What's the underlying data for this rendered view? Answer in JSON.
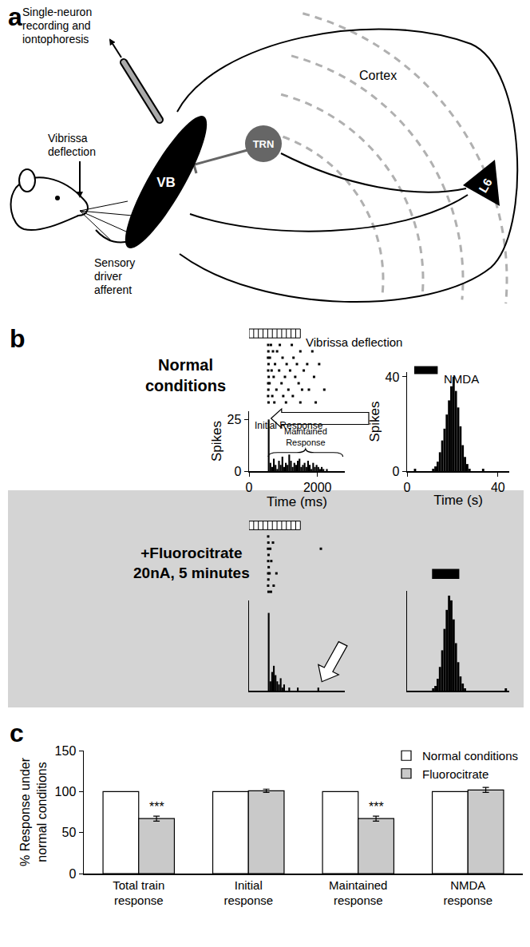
{
  "panels": [
    "a",
    "b",
    "c"
  ],
  "diagram": {
    "electrode_label": [
      "Single-neuron",
      "recording and",
      "iontophoresis"
    ],
    "stimulus_label": [
      "Vibrissa",
      "deflection"
    ],
    "afferent_label": [
      "Sensory",
      "driver",
      "afferent"
    ],
    "nodes": [
      "VB",
      "TRN",
      "Cortex",
      "L6"
    ]
  },
  "conditions": [
    "Normal conditions",
    "+Fluorocitrate 20nA, 5 minutes"
  ],
  "chart_data": [
    {
      "type": "raster",
      "stimulus": [
        0,
        1500
      ],
      "stimulus_label": "Vibrissa deflection",
      "xlim": [
        0,
        2800
      ],
      "tick_labels": false,
      "trials": [
        [
          560,
          640,
          900,
          1250
        ],
        [
          565,
          700,
          820,
          1500,
          1850
        ],
        [
          555,
          610,
          980,
          1300
        ],
        [
          570,
          760,
          1100,
          1400,
          1700,
          2050
        ],
        [
          560,
          660,
          880,
          1200,
          1600
        ],
        [
          575,
          720,
          1050,
          1350,
          1900
        ],
        [
          560,
          600,
          950,
          1450
        ],
        [
          565,
          800,
          1150,
          1550,
          1750,
          2200
        ],
        [
          558,
          680,
          1000,
          1280
        ],
        [
          570,
          740,
          1080,
          1500,
          1950
        ]
      ]
    },
    {
      "type": "histogram",
      "x_label": "Time (ms)",
      "y_label": "Spikes",
      "color": "#000000",
      "bins": [
        0,
        50,
        100,
        150,
        200,
        250,
        300,
        350,
        400,
        450,
        500,
        550,
        600,
        650,
        700,
        750,
        800,
        850,
        900,
        950,
        1000,
        1050,
        1100,
        1150,
        1200,
        1250,
        1300,
        1350,
        1400,
        1450,
        1500,
        1550,
        1600,
        1650,
        1700,
        1750,
        1800,
        1850,
        1900,
        1950,
        2000,
        2050,
        2100,
        2150,
        2200,
        2250,
        2300,
        2350,
        2400,
        2450,
        2500,
        2550,
        2600,
        2650,
        2700,
        2750,
        2800
      ],
      "counts": [
        0,
        0,
        0,
        0,
        0,
        0,
        0,
        0,
        0,
        0,
        0,
        25,
        4,
        2,
        6,
        3,
        1,
        5,
        3,
        7,
        2,
        4,
        3,
        8,
        5,
        2,
        4,
        3,
        5,
        6,
        2,
        3,
        4,
        2,
        5,
        3,
        1,
        4,
        2,
        3,
        2,
        1,
        2,
        1,
        0,
        1,
        0,
        0,
        0,
        0,
        0,
        0,
        0,
        0,
        0,
        0
      ],
      "xlim": [
        0,
        2800
      ],
      "xticks": [
        0,
        2000
      ],
      "ylim": [
        0,
        29
      ],
      "yticks": [
        0,
        25
      ],
      "annotations": [
        "Initial Response",
        "Maintained Response"
      ]
    },
    {
      "type": "histogram",
      "x_label": "Time (s)",
      "y_label": "Spikes",
      "color": "#000000",
      "stimulus_label": "NMDA",
      "bins": [
        0,
        1,
        2,
        3,
        4,
        5,
        6,
        7,
        8,
        9,
        10,
        11,
        12,
        13,
        14,
        15,
        16,
        17,
        18,
        19,
        20,
        21,
        22,
        23,
        24,
        25,
        26,
        27,
        28,
        29,
        30,
        31,
        32,
        33,
        34,
        35,
        36,
        37,
        38,
        39,
        40,
        41,
        42,
        43,
        44,
        45
      ],
      "counts": [
        0,
        0,
        0,
        1,
        0,
        0,
        0,
        0,
        0,
        0,
        0,
        1,
        2,
        4,
        8,
        13,
        18,
        24,
        30,
        36,
        40,
        34,
        27,
        19,
        11,
        6,
        3,
        1,
        0,
        0,
        0,
        0,
        0,
        1,
        0,
        0,
        0,
        0,
        0,
        0,
        0,
        0,
        0,
        0,
        0
      ],
      "xlim": [
        0,
        45
      ],
      "xticks": [
        0,
        40
      ],
      "ylim": [
        0,
        42
      ],
      "yticks": [
        0,
        40
      ]
    },
    {
      "type": "raster",
      "stimulus": [
        0,
        1500
      ],
      "xlim": [
        0,
        2800
      ],
      "tick_labels": false,
      "trials": [
        [
          560
        ],
        [
          565,
          700
        ],
        [
          555,
          620,
          2100
        ],
        [
          570
        ],
        [
          560,
          650
        ],
        [
          575
        ],
        [
          560,
          600,
          800
        ],
        [
          565
        ],
        [
          558,
          720
        ],
        [
          570,
          640
        ]
      ]
    },
    {
      "type": "histogram",
      "color": "#000000",
      "tick_labels": false,
      "bins": [
        0,
        50,
        100,
        150,
        200,
        250,
        300,
        350,
        400,
        450,
        500,
        550,
        600,
        650,
        700,
        750,
        800,
        850,
        900,
        950,
        1000,
        1050,
        1100,
        1150,
        1200,
        1250,
        1300,
        1350,
        1400,
        1450,
        1500,
        1550,
        1600,
        1650,
        1700,
        1750,
        1800,
        1850,
        1900,
        1950,
        2000,
        2050,
        2100,
        2150,
        2200,
        2250,
        2300,
        2350,
        2400,
        2450,
        2500,
        2550,
        2600,
        2650,
        2700,
        2750,
        2800
      ],
      "counts": [
        0,
        0,
        0,
        0,
        0,
        0,
        0,
        0,
        0,
        0,
        0,
        25,
        3,
        6,
        8,
        5,
        3,
        2,
        4,
        1,
        2,
        0,
        0,
        1,
        0,
        0,
        0,
        0,
        1,
        0,
        0,
        0,
        0,
        0,
        0,
        0,
        0,
        0,
        0,
        0,
        1,
        0,
        0,
        0,
        0,
        0,
        0,
        0,
        0,
        0,
        0,
        0,
        0,
        0,
        0,
        0
      ],
      "xlim": [
        0,
        2800
      ],
      "ylim": [
        0,
        29
      ]
    },
    {
      "type": "histogram",
      "color": "#000000",
      "tick_labels": false,
      "stimulus": [
        11,
        23
      ],
      "bins": [
        0,
        1,
        2,
        3,
        4,
        5,
        6,
        7,
        8,
        9,
        10,
        11,
        12,
        13,
        14,
        15,
        16,
        17,
        18,
        19,
        20,
        21,
        22,
        23,
        24,
        25,
        26,
        27,
        28,
        29,
        30,
        31,
        32,
        33,
        34,
        35,
        36,
        37,
        38,
        39,
        40,
        41,
        42,
        43,
        44,
        45
      ],
      "counts": [
        0,
        0,
        0,
        0,
        0,
        0,
        0,
        0,
        0,
        0,
        0,
        1,
        2,
        5,
        10,
        17,
        26,
        34,
        40,
        38,
        30,
        20,
        12,
        6,
        3,
        1,
        0,
        0,
        0,
        0,
        0,
        0,
        0,
        0,
        0,
        0,
        0,
        0,
        0,
        0,
        0,
        0,
        0,
        1,
        0
      ],
      "xlim": [
        0,
        45
      ],
      "ylim": [
        0,
        42
      ]
    },
    {
      "type": "bar",
      "y_label": "% Response under normal conditions",
      "categories": [
        "Total train response",
        "Initial response",
        "Maintained response",
        "NMDA response"
      ],
      "series": [
        {
          "name": "Normal conditions",
          "color": "#ffffff",
          "values": [
            100,
            100,
            100,
            100
          ]
        },
        {
          "name": "Fluorocitrate",
          "color": "#c9c9c9",
          "values": [
            67,
            101,
            67,
            102
          ],
          "error": [
            3,
            2,
            3,
            3
          ],
          "annotations": [
            "***",
            null,
            "***",
            null
          ]
        }
      ],
      "ylim": [
        0,
        150
      ],
      "yticks": [
        0,
        50,
        100,
        150
      ],
      "legend": "top right"
    }
  ]
}
